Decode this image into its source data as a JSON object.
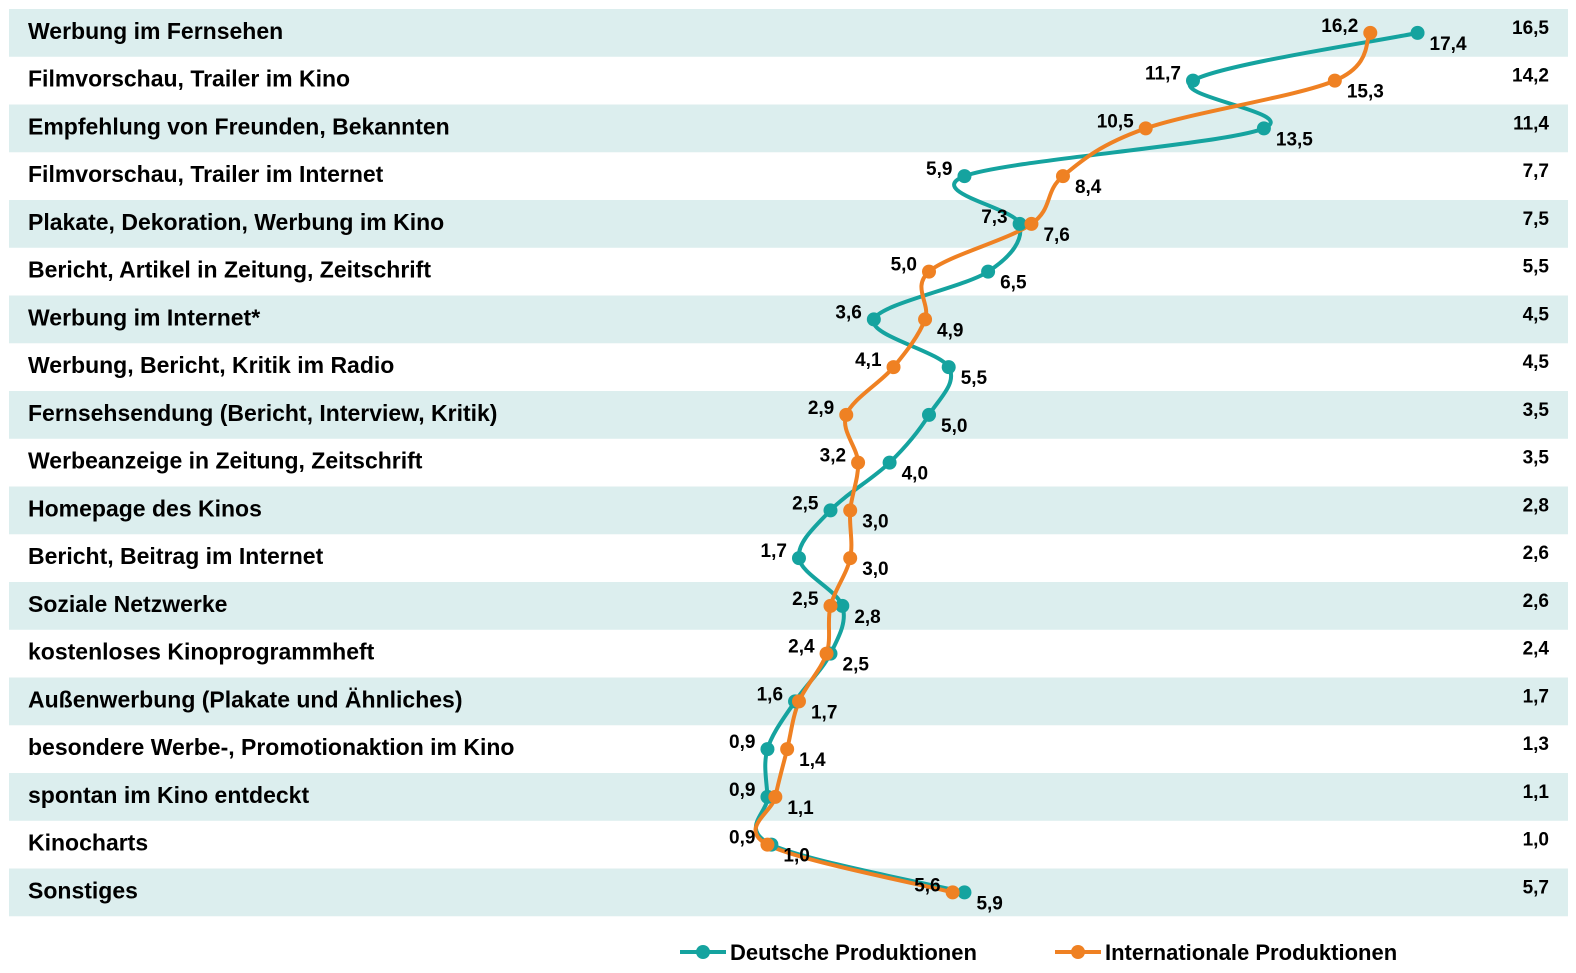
{
  "chart_data": {
    "type": "line",
    "orientation": "horizontal",
    "categories": [
      "Werbung im Fernsehen",
      "Filmvorschau, Trailer im Kino",
      "Empfehlung von Freunden, Bekannten",
      "Filmvorschau, Trailer im Internet",
      "Plakate, Dekoration, Werbung im Kino",
      "Bericht, Artikel in Zeitung, Zeitschrift",
      "Werbung im Internet*",
      "Werbung, Bericht, Kritik im Radio",
      "Fernsehsendung (Bericht, Interview, Kritik)",
      "Werbeanzeige in Zeitung, Zeitschrift",
      "Homepage des Kinos",
      "Bericht, Beitrag im Internet",
      "Soziale Netzwerke",
      "kostenloses Kinoprogrammheft",
      "Außenwerbung (Plakate und Ähnliches)",
      "besondere Werbe-, Promotionaktion im Kino",
      "spontan im Kino entdeckt",
      "Kinocharts",
      "Sonstiges"
    ],
    "series": [
      {
        "name": "Deutsche Produktionen",
        "color": "#15a39f",
        "values": [
          17.4,
          11.7,
          13.5,
          5.9,
          7.3,
          6.5,
          3.6,
          5.5,
          5.0,
          4.0,
          2.5,
          1.7,
          2.8,
          2.5,
          1.6,
          0.9,
          0.9,
          1.0,
          5.9
        ],
        "value_labels": [
          "17,4",
          "11,7",
          "13,5",
          "5,9",
          "7,3",
          "6,5",
          "3,6",
          "5,5",
          "5,0",
          "4,0",
          "2,5",
          "1,7",
          "2,8",
          "2,5",
          "1,6",
          "0,9",
          "0,9",
          "1,0",
          "5,9"
        ]
      },
      {
        "name": "Internationale Produktionen",
        "color": "#ef8123",
        "values": [
          16.2,
          15.3,
          10.5,
          8.4,
          7.6,
          5.0,
          4.9,
          4.1,
          2.9,
          3.2,
          3.0,
          3.0,
          2.5,
          2.4,
          1.7,
          1.4,
          1.1,
          0.9,
          5.6
        ],
        "value_labels": [
          "16,2",
          "15,3",
          "10,5",
          "8,4",
          "7,6",
          "5,0",
          "4,9",
          "4,1",
          "2,9",
          "3,2",
          "3,0",
          "3,0",
          "2,5",
          "2,4",
          "1,7",
          "1,4",
          "1,1",
          "0,9",
          "5,6"
        ]
      }
    ],
    "totals": {
      "values": [
        16.5,
        14.2,
        11.4,
        7.7,
        7.5,
        5.5,
        4.5,
        4.5,
        3.5,
        3.5,
        2.8,
        2.6,
        2.6,
        2.4,
        1.7,
        1.3,
        1.1,
        1.0,
        5.7
      ],
      "value_labels": [
        "16,5",
        "14,2",
        "11,4",
        "7,7",
        "7,5",
        "5,5",
        "4,5",
        "4,5",
        "3,5",
        "3,5",
        "2,8",
        "2,6",
        "2,6",
        "2,4",
        "1,7",
        "1,3",
        "1,1",
        "1,0",
        "5,7"
      ]
    },
    "xlim": [
      0,
      20
    ],
    "stripes": "#dceeee"
  }
}
